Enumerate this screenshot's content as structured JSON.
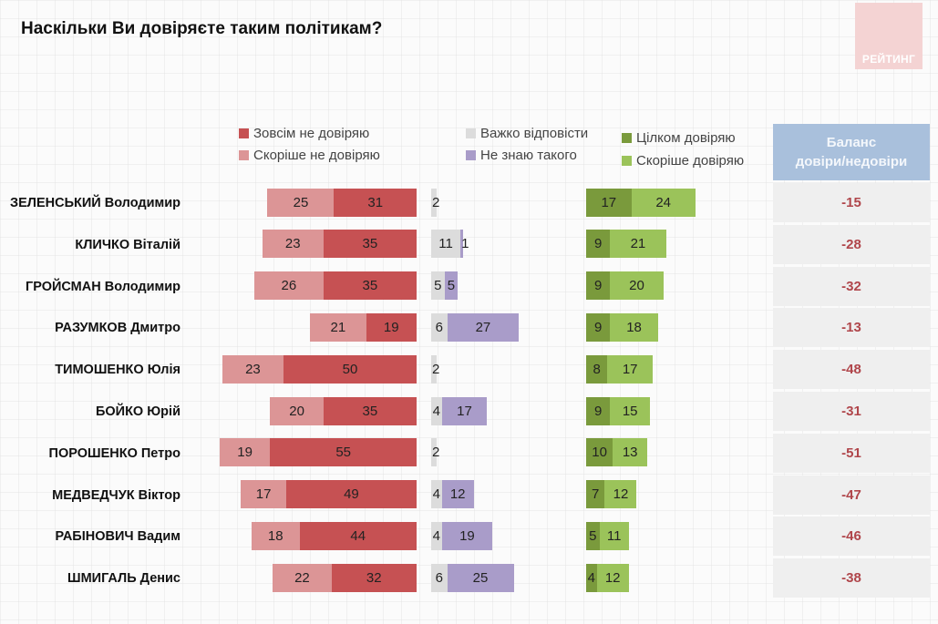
{
  "header": {
    "title": "Наскільки Ви довіряєте таким політикам?",
    "logo_text": "РЕЙТИНГ"
  },
  "legend": {
    "fully_distrust": "Зовсім не довіряю",
    "rather_distrust": "Скоріше не довіряю",
    "hard_to_say": "Важко відповісти",
    "dont_know": "Не знаю такого",
    "fully_trust": "Цілком довіряю",
    "rather_trust": "Скоріше довіряю"
  },
  "balance_header": {
    "line1": "Баланс",
    "line2": "довіри/недовіри"
  },
  "colors": {
    "fully_distrust": "#c65153",
    "rather_distrust": "#dc9596",
    "hard_to_say": "#dcdcdc",
    "dont_know": "#a99cc9",
    "fully_trust": "#7a9a3c",
    "rather_trust": "#9bc35a",
    "balance_text": "#b0464b",
    "balance_header_bg": "#a9c0dc"
  },
  "chart_data": {
    "type": "bar",
    "title": "Наскільки Ви довіряєте таким політикам?",
    "unit": "%",
    "categories": [
      "ЗЕЛЕНСЬКИЙ Володимир",
      "КЛИЧКО Віталій",
      "ГРОЙСМАН Володимир",
      "РАЗУМКОВ Дмитро",
      "ТИМОШЕНКО Юлія",
      "БОЙКО Юрій",
      "ПОРОШЕНКО Петро",
      "МЕДВЕДЧУК Віктор",
      "РАБІНОВИЧ Вадим",
      "ШМИГАЛЬ Денис"
    ],
    "series": [
      {
        "name": "Скоріше не довіряю",
        "key": "rather_distrust",
        "values": [
          25,
          23,
          26,
          21,
          23,
          20,
          19,
          17,
          18,
          22
        ]
      },
      {
        "name": "Зовсім не довіряю",
        "key": "fully_distrust",
        "values": [
          31,
          35,
          35,
          19,
          50,
          35,
          55,
          49,
          44,
          32
        ]
      },
      {
        "name": "Важко відповісти",
        "key": "hard_to_say",
        "values": [
          2,
          11,
          5,
          6,
          2,
          4,
          2,
          4,
          4,
          6
        ]
      },
      {
        "name": "Не знаю такого",
        "key": "dont_know",
        "values": [
          null,
          1,
          5,
          27,
          null,
          17,
          null,
          12,
          19,
          25
        ]
      },
      {
        "name": "Цілком довіряю",
        "key": "fully_trust",
        "values": [
          17,
          9,
          9,
          9,
          8,
          9,
          10,
          7,
          5,
          4
        ]
      },
      {
        "name": "Скоріше довіряю",
        "key": "rather_trust",
        "values": [
          24,
          21,
          20,
          18,
          17,
          15,
          13,
          12,
          11,
          12
        ]
      }
    ],
    "balance": {
      "label": "Баланс довіри/недовіри",
      "values": [
        -15,
        -28,
        -32,
        -13,
        -48,
        -31,
        -51,
        -47,
        -46,
        -38
      ]
    },
    "legend_position": "top"
  }
}
